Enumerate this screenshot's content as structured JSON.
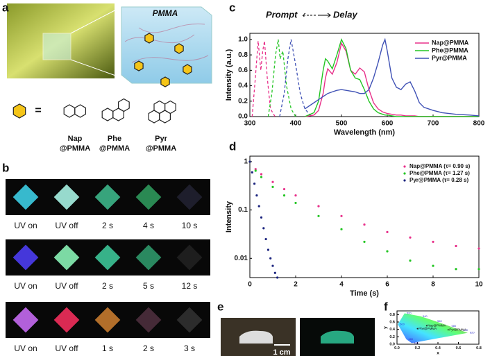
{
  "panel_labels": [
    "a",
    "b",
    "c",
    "d",
    "e",
    "f"
  ],
  "panel_a": {
    "material": "PMMA",
    "equals": "=",
    "molecules": [
      [
        "Nap",
        "@PMMA"
      ],
      [
        "Phe",
        "@PMMA"
      ],
      [
        "Pyr",
        "@PMMA"
      ]
    ]
  },
  "panel_b": {
    "rows": [
      [
        "UV on",
        "UV off",
        "2 s",
        "4 s",
        "10 s"
      ],
      [
        "UV on",
        "UV off",
        "2 s",
        "5 s",
        "12 s"
      ],
      [
        "UV on",
        "UV off",
        "1 s",
        "2 s",
        "3 s"
      ]
    ]
  },
  "panel_e": {
    "scale_bar": "1 cm"
  },
  "chart_data": [
    {
      "type": "line",
      "annotations": [
        "Prompt",
        "Delay"
      ],
      "x_label": "Wavelength (nm)",
      "y_label": "Intensity (a.u.)",
      "legend": "upper right",
      "xlim": [
        300,
        800
      ],
      "xticks": [
        300,
        400,
        500,
        600,
        700,
        800
      ],
      "ylim": [
        0,
        1.08
      ],
      "yticks": [
        {
          "value": 0,
          "label": "0.0"
        },
        {
          "value": 0.2,
          "label": "0.2"
        },
        {
          "value": 0.4,
          "label": "0.4"
        },
        {
          "value": 0.6,
          "label": "0.6"
        },
        {
          "value": 0.8,
          "label": "0.8"
        },
        {
          "value": 1,
          "label": "1.0"
        }
      ],
      "x": [
        420,
        440,
        450,
        460,
        465,
        470,
        480,
        490,
        500,
        510,
        520,
        530,
        540,
        550,
        560,
        570,
        580,
        590,
        595,
        600,
        610,
        620,
        630,
        640,
        650,
        660,
        670,
        680,
        700,
        720,
        750,
        780,
        800
      ],
      "series": [
        {
          "name": "Nap@PMMA",
          "color": "#e8308a",
          "values": [
            0,
            0.02,
            0.08,
            0.3,
            0.5,
            0.62,
            0.55,
            0.7,
            0.95,
            0.85,
            0.6,
            0.55,
            0.63,
            0.58,
            0.35,
            0.18,
            0.1,
            0.06,
            0.05,
            0.04,
            0.03,
            0.02,
            0.02,
            0.01,
            0.01,
            0.01,
            0,
            0,
            0,
            0,
            0,
            0,
            0
          ]
        },
        {
          "name": "Phe@PMMA",
          "color": "#22c522",
          "values": [
            0,
            0.05,
            0.2,
            0.6,
            0.75,
            0.72,
            0.62,
            0.8,
            1,
            0.88,
            0.6,
            0.5,
            0.48,
            0.35,
            0.2,
            0.1,
            0.05,
            0.03,
            0.02,
            0.02,
            0.01,
            0,
            0,
            0,
            0,
            0,
            0,
            0,
            0,
            0,
            0,
            0,
            0
          ]
        },
        {
          "name": "Pyr@PMMA",
          "color": "#3f51b5",
          "values": [
            0.1,
            0.18,
            0.22,
            0.26,
            0.28,
            0.3,
            0.32,
            0.34,
            0.35,
            0.34,
            0.33,
            0.32,
            0.3,
            0.3,
            0.35,
            0.5,
            0.7,
            0.93,
            1,
            0.85,
            0.5,
            0.38,
            0.35,
            0.42,
            0.45,
            0.33,
            0.18,
            0.12,
            0.08,
            0.05,
            0.03,
            0.02,
            0.01
          ]
        }
      ],
      "prompt_series": [
        {
          "color": "#e8308a",
          "x": [
            305,
            312,
            318,
            324,
            328,
            332,
            338,
            345,
            355
          ],
          "values": [
            0,
            0.5,
            0.98,
            0.6,
            0.85,
            0.98,
            0.5,
            0.1,
            0
          ]
        },
        {
          "color": "#22c522",
          "x": [
            340,
            348,
            356,
            362,
            366,
            372,
            380,
            390,
            400
          ],
          "values": [
            0,
            0.3,
            0.8,
            1,
            0.75,
            0.85,
            0.4,
            0.1,
            0
          ]
        },
        {
          "color": "#3f51b5",
          "x": [
            365,
            375,
            383,
            390,
            396,
            402,
            410,
            420,
            435
          ],
          "values": [
            0,
            0.3,
            0.75,
            1,
            0.8,
            0.6,
            0.3,
            0.1,
            0
          ]
        }
      ]
    },
    {
      "type": "scatter",
      "log_y": true,
      "x_label": "Time (s)",
      "y_label": "Intensity",
      "legend": "upper right",
      "xlim": [
        0,
        10
      ],
      "xticks": [
        0,
        2,
        4,
        6,
        8,
        10
      ],
      "ylim": [
        0.004,
        1.3
      ],
      "yticks": [
        1,
        0.1,
        0.01
      ],
      "series": [
        {
          "name": "Nap@PMMA (τ= 0.90 s)",
          "color": "#e8308a",
          "x": [
            0,
            0.25,
            0.5,
            1,
            1.5,
            2,
            3,
            4,
            5,
            6,
            7,
            8,
            9,
            10
          ],
          "values": [
            1,
            0.7,
            0.55,
            0.38,
            0.27,
            0.2,
            0.12,
            0.075,
            0.05,
            0.035,
            0.027,
            0.022,
            0.018,
            0.016
          ]
        },
        {
          "name": "Phe@PMMA (τ= 1.27 s)",
          "color": "#22c522",
          "x": [
            0,
            0.25,
            0.5,
            1,
            1.5,
            2,
            3,
            4,
            5,
            6,
            7,
            8,
            9,
            10
          ],
          "values": [
            1,
            0.65,
            0.48,
            0.3,
            0.2,
            0.14,
            0.075,
            0.04,
            0.022,
            0.014,
            0.009,
            0.007,
            0.006,
            0.006
          ]
        },
        {
          "name": "Pyr@PMMA (τ= 0.28 s)",
          "color": "#1a237e",
          "x": [
            0,
            0.1,
            0.2,
            0.3,
            0.4,
            0.5,
            0.6,
            0.7,
            0.8,
            0.9,
            1,
            1.1,
            1.2
          ],
          "values": [
            1,
            0.6,
            0.35,
            0.2,
            0.12,
            0.07,
            0.042,
            0.025,
            0.015,
            0.01,
            0.007,
            0.005,
            0.004
          ]
        }
      ]
    },
    {
      "type": "scatter",
      "x_label": "x",
      "y_label": "y",
      "xlim": [
        0,
        0.8
      ],
      "ylim": [
        0,
        0.9
      ],
      "xticks": [
        {
          "value": 0,
          "label": "0.0"
        },
        {
          "value": 0.2,
          "label": "0.2"
        },
        {
          "value": 0.4,
          "label": "0.4"
        },
        {
          "value": 0.6,
          "label": "0.6"
        },
        {
          "value": 0.8,
          "label": "0.8"
        }
      ],
      "yticks": [
        {
          "value": 0,
          "label": "0.0"
        },
        {
          "value": 0.2,
          "label": "0.2"
        },
        {
          "value": 0.4,
          "label": "0.4"
        },
        {
          "value": 0.6,
          "label": "0.6"
        },
        {
          "value": 0.8,
          "label": "0.8"
        }
      ],
      "series": [
        {
          "name": "Nap@PMMA",
          "color": "#222222",
          "x": [
            0.29
          ],
          "values": [
            0.5
          ]
        },
        {
          "name": "Phe@PMMA",
          "color": "#222222",
          "x": [
            0.2
          ],
          "values": [
            0.42
          ]
        },
        {
          "name": "Pyr@PMMA",
          "color": "#222222",
          "x": [
            0.5
          ],
          "values": [
            0.39
          ]
        }
      ],
      "locus": {
        "wavelengths": [
          460,
          480,
          500,
          520,
          540,
          560,
          580,
          600,
          620
        ],
        "x": [
          0.144,
          0.091,
          0.008,
          0.074,
          0.23,
          0.373,
          0.512,
          0.627,
          0.691
        ],
        "values": [
          0.03,
          0.133,
          0.538,
          0.834,
          0.754,
          0.624,
          0.487,
          0.372,
          0.308
        ]
      }
    }
  ]
}
